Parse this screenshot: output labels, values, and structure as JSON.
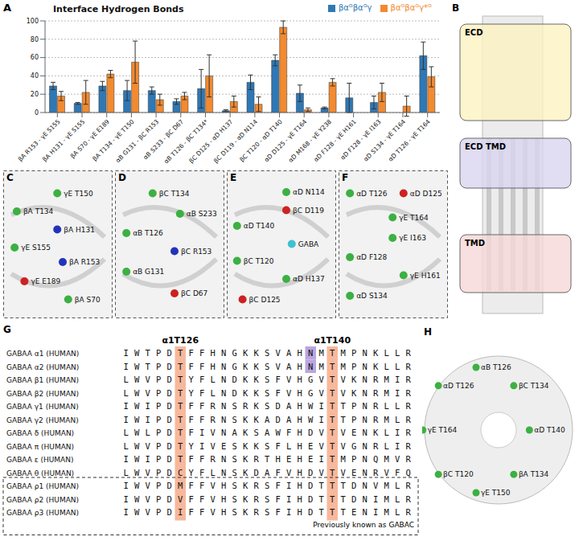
{
  "chart_data": {
    "type": "bar",
    "panel": "A",
    "title": "Interface Hydrogen Bonds",
    "categories": [
      "βA R153 - γE S155",
      "βA H131 - γE S155",
      "βA S70 - γE E189",
      "βA T134 - γE T150",
      "αB G131 - βC R153",
      "αB S233 - βC D67",
      "αB T126 - βC T134*",
      "βC D125 - αD H137",
      "βC D119 - αD N114",
      "βC T120 - αD T140",
      "αD D125 - γE T164",
      "αD M168 - γE Y238",
      "αD F128 - γE H161",
      "αD F128 - γE I163",
      "αD S134 - γE T164",
      "αD T126 - γE T164"
    ],
    "series": [
      {
        "name": "βαᴳβαᴳγ",
        "color": "#2f78b5",
        "values": [
          29,
          10,
          29,
          24,
          24,
          12,
          26,
          2,
          33,
          57,
          21,
          5,
          16,
          11,
          0,
          62
        ],
        "errors": [
          4,
          1,
          5,
          11,
          4,
          3,
          21,
          1,
          8,
          6,
          9,
          1,
          16,
          7,
          0,
          15
        ]
      },
      {
        "name": "βαᴳβαᴳγ*ᴳ",
        "color": "#f28a30",
        "values": [
          18,
          22,
          42,
          55,
          14,
          18,
          40,
          12,
          9,
          93,
          3,
          33,
          0,
          22,
          7,
          39
        ],
        "errors": [
          5,
          13,
          4,
          23,
          6,
          4,
          23,
          6,
          8,
          7,
          2,
          4,
          0,
          10,
          11,
          11
        ]
      }
    ],
    "ylim": [
      0,
      100
    ],
    "yticks": [
      0,
      20,
      40,
      60,
      80,
      100
    ],
    "grid": true,
    "legend": "top right"
  },
  "panels": [
    {
      "letter": "B",
      "labels": [
        {
          "text": "ECD",
          "color": "#fbf3c0"
        },
        {
          "text": "ECD TMD",
          "color": "#d9d5f0"
        },
        {
          "text": "TMD",
          "color": "#f6d8d8"
        }
      ]
    },
    {
      "letter": "C",
      "labels": [
        {
          "text": "γE T150",
          "color": "#3cb043"
        },
        {
          "text": "βA T134",
          "color": "#3cb043"
        },
        {
          "text": "βA H131",
          "color": "#2233bb"
        },
        {
          "text": "γE S155",
          "color": "#3cb043"
        },
        {
          "text": "βA R153",
          "color": "#2233bb"
        },
        {
          "text": "γE E189",
          "color": "#cc2222"
        },
        {
          "text": "βA S70",
          "color": "#3cb043"
        }
      ]
    },
    {
      "letter": "D",
      "labels": [
        {
          "text": "βC T134",
          "color": "#3cb043"
        },
        {
          "text": "αB S233",
          "color": "#3cb043"
        },
        {
          "text": "αB T126",
          "color": "#3cb043"
        },
        {
          "text": "βC R153",
          "color": "#2233bb"
        },
        {
          "text": "αB G131",
          "color": "#3cb043"
        },
        {
          "text": "βC D67",
          "color": "#cc2222"
        }
      ]
    },
    {
      "letter": "E",
      "labels": [
        {
          "text": "αD N114",
          "color": "#3cb043"
        },
        {
          "text": "βC D119",
          "color": "#cc2222"
        },
        {
          "text": "αD T140",
          "color": "#3cb043"
        },
        {
          "text": "GABA",
          "color": "#40c0d0"
        },
        {
          "text": "βC T120",
          "color": "#3cb043"
        },
        {
          "text": "αD H137",
          "color": "#3cb043"
        },
        {
          "text": "βC D125",
          "color": "#cc2222"
        }
      ]
    },
    {
      "letter": "F",
      "labels": [
        {
          "text": "αD T126",
          "color": "#3cb043"
        },
        {
          "text": "αD D125",
          "color": "#cc2222"
        },
        {
          "text": "γE T164",
          "color": "#3cb043"
        },
        {
          "text": "γE I163",
          "color": "#3cb043"
        },
        {
          "text": "αD F128",
          "color": "#3cb043"
        },
        {
          "text": "γE H161",
          "color": "#3cb043"
        },
        {
          "text": "αD S134",
          "color": "#3cb043"
        }
      ]
    },
    {
      "letter": "G",
      "header": [
        "α1T126",
        "α1T140"
      ],
      "rows": [
        {
          "name": "GABAA α1 (HUMAN)",
          "sequence": "IWTPDTFFHNGKKSVAHNMTMPNKLLR"
        },
        {
          "name": "GABAA α2 (HUMAN)",
          "sequence": "IWTPDTFFHNGKKSVAHNMTMPNKLLR"
        },
        {
          "name": "GABAA β1 (HUMAN)",
          "sequence": "LWVPDTYFLNDKKSFVHGVTVKNRMIR"
        },
        {
          "name": "GABAA β2 (HUMAN)",
          "sequence": "LWVPDTYFLNDKKSFVHGVTVKNRMIR"
        },
        {
          "name": "GABAA γ1 (HUMAN)",
          "sequence": "IWIPDTFFRNSRKSDAHWITTPNRLLR"
        },
        {
          "name": "GABAA γ2 (HUMAN)",
          "sequence": "IWIPDTFFRNSKKADAHWITTPNRMLR"
        },
        {
          "name": "GABAA δ (HUMAN)",
          "sequence": "LWLPDTFIVNAKSAWFHDVTVENKLIR"
        },
        {
          "name": "GABAA π (HUMAN)",
          "sequence": "LWVPDTYIVESKKSFLHEVTVGNRLIR"
        },
        {
          "name": "GABAA ε (HUMAN)",
          "sequence": "IWIPDTFFRNSKRTHEHEITMPNQMVR"
        },
        {
          "name": "GABAA θ (HUMAN)",
          "sequence": "LWVPDCYFLNSKDAFVHDVTVENRVFQ"
        },
        {
          "name": "GABAA ρ1 (HUMAN)",
          "sequence": "IWVPDMFFVHSKRSFIHDTTTDNVMLR"
        },
        {
          "name": "GABAA ρ2 (HUMAN)",
          "sequence": "IWVPDVFFVHSKRSFIHDTTTDNIMLR"
        },
        {
          "name": "GABAA ρ3 (HUMAN)",
          "sequence": "IWVPDIFFVHSKRSFIHDTTTENIMLR"
        }
      ],
      "group_label": "Previously known as GABAC"
    },
    {
      "letter": "H",
      "labels": [
        {
          "text": "αB T126",
          "color": "#3cb043"
        },
        {
          "text": "βC T134",
          "color": "#3cb043"
        },
        {
          "text": "αD T140",
          "color": "#3cb043"
        },
        {
          "text": "βA T134",
          "color": "#3cb043"
        },
        {
          "text": "γE T150",
          "color": "#3cb043"
        },
        {
          "text": "βC T120",
          "color": "#3cb043"
        },
        {
          "text": "γE T164",
          "color": "#3cb043"
        },
        {
          "text": "αD T126",
          "color": "#3cb043"
        }
      ]
    }
  ]
}
